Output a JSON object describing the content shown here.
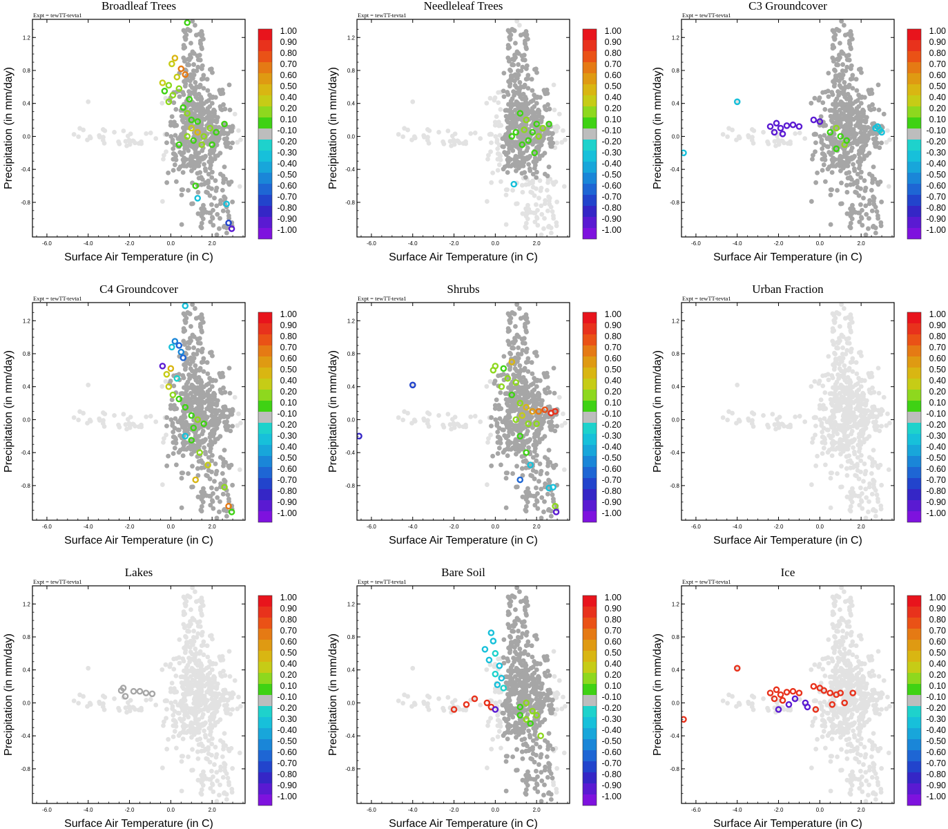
{
  "figure": {
    "expt_label": "Expt = tewTT-tevta1",
    "xlabel": "Surface Air Temperature (in C)",
    "ylabel": "Precipitation (in mm/day)",
    "x_ticks": [
      "-6.0",
      "-4.0",
      "-2.0",
      "0.0",
      "2.0"
    ],
    "y_ticks": [
      "1.2",
      "0.8",
      "0.4",
      "0.0",
      "-0.4",
      "-0.8"
    ],
    "colorbar_labels": [
      "1.00",
      "0.90",
      "0.80",
      "0.70",
      "0.60",
      "0.50",
      "0.40",
      "0.20",
      "0.10",
      "-0.10",
      "-0.20",
      "-0.30",
      "-0.40",
      "-0.50",
      "-0.60",
      "-0.70",
      "-0.80",
      "-0.90",
      "-1.00"
    ],
    "colorbar_colors": [
      "#e8141c",
      "#e8321c",
      "#ea5216",
      "#e57a14",
      "#df9a12",
      "#d9b612",
      "#c6cc16",
      "#8ed81e",
      "#3fd214",
      "#bdbdbd",
      "#1ed2cc",
      "#17c0da",
      "#18a6da",
      "#1a86d8",
      "#1e66d4",
      "#2244cc",
      "#3526c6",
      "#5a1ad2",
      "#7e12de"
    ],
    "background_color": "#e2e2e2",
    "highlight_gray": "#a6a6a6"
  },
  "chart_data": [
    {
      "title": "Broadleaf Trees",
      "type": "scatter",
      "xlim": [
        -6.7,
        3.6
      ],
      "ylim": [
        -1.22,
        1.42
      ],
      "xlabel": "Surface Air Temperature (in C)",
      "ylabel": "Precipitation (in mm/day)",
      "highlight_region": {
        "x": [
          -0.2,
          3.0
        ],
        "y": [
          -1.2,
          1.4
        ]
      },
      "colored": [
        [
          0.8,
          1.38,
          0.15
        ],
        [
          0.2,
          0.95,
          0.5
        ],
        [
          0.05,
          0.88,
          0.45
        ],
        [
          0.5,
          0.82,
          0.65
        ],
        [
          0.7,
          0.75,
          0.7
        ],
        [
          0.3,
          0.72,
          0.45
        ],
        [
          -0.4,
          0.65,
          0.4
        ],
        [
          -0.1,
          0.62,
          0.3
        ],
        [
          -0.3,
          0.55,
          0.15
        ],
        [
          0.1,
          0.5,
          0.2
        ],
        [
          0.4,
          0.58,
          0.35
        ],
        [
          -0.1,
          0.42,
          0.2
        ],
        [
          0.6,
          0.35,
          0.15
        ],
        [
          0.8,
          0.28,
          0.2
        ],
        [
          0.9,
          0.45,
          0.15
        ],
        [
          1.0,
          0.2,
          0.15
        ],
        [
          1.3,
          0.18,
          0.12
        ],
        [
          1.0,
          0.1,
          0.4
        ],
        [
          1.3,
          0.05,
          0.5
        ],
        [
          1.6,
          0.0,
          0.3
        ],
        [
          1.9,
          0.1,
          0.2
        ],
        [
          2.2,
          0.05,
          0.15
        ],
        [
          2.6,
          0.15,
          0.12
        ],
        [
          1.5,
          -0.1,
          0.25
        ],
        [
          1.1,
          -0.05,
          0.12
        ],
        [
          0.8,
          0.0,
          0.2
        ],
        [
          0.4,
          -0.1,
          0.15
        ],
        [
          2.0,
          -0.1,
          0.15
        ],
        [
          1.2,
          -0.6,
          0.15
        ],
        [
          1.3,
          -0.75,
          -0.25
        ],
        [
          2.7,
          -0.82,
          -0.3
        ],
        [
          2.8,
          -1.05,
          -0.7
        ],
        [
          2.95,
          -1.12,
          -0.85
        ]
      ]
    },
    {
      "title": "Needleleaf Trees",
      "type": "scatter",
      "xlim": [
        -6.7,
        3.6
      ],
      "ylim": [
        -1.22,
        1.42
      ],
      "xlabel": "Surface Air Temperature (in C)",
      "ylabel": "Precipitation (in mm/day)",
      "highlight_region": {
        "x": [
          0.3,
          2.8
        ],
        "y": [
          -0.5,
          1.3
        ]
      },
      "colored": [
        [
          1.2,
          0.28,
          0.15
        ],
        [
          1.5,
          0.2,
          0.2
        ],
        [
          2.0,
          0.15,
          0.12
        ],
        [
          2.3,
          0.1,
          0.2
        ],
        [
          2.6,
          0.15,
          0.12
        ],
        [
          1.8,
          0.05,
          0.15
        ],
        [
          1.4,
          0.08,
          0.3
        ],
        [
          1.0,
          0.05,
          0.15
        ],
        [
          0.8,
          0.0,
          0.12
        ],
        [
          1.6,
          -0.05,
          0.15
        ],
        [
          2.1,
          0.0,
          0.2
        ],
        [
          1.3,
          -0.1,
          0.12
        ],
        [
          1.9,
          -0.2,
          0.12
        ],
        [
          0.9,
          -0.58,
          -0.25
        ]
      ]
    },
    {
      "title": "C3 Groundcover",
      "type": "scatter",
      "xlim": [
        -6.7,
        3.6
      ],
      "ylim": [
        -1.22,
        1.42
      ],
      "xlabel": "Surface Air Temperature (in C)",
      "ylabel": "Precipitation (in mm/day)",
      "highlight_region": {
        "x": [
          -0.5,
          3.2
        ],
        "y": [
          -1.2,
          1.4
        ]
      },
      "colored": [
        [
          -4.0,
          0.42,
          -0.25
        ],
        [
          -6.6,
          -0.2,
          -0.3
        ],
        [
          -2.4,
          0.12,
          -0.95
        ],
        [
          -2.1,
          0.16,
          -0.9
        ],
        [
          -1.9,
          0.1,
          -0.95
        ],
        [
          -1.6,
          0.13,
          -0.9
        ],
        [
          -1.3,
          0.14,
          -0.9
        ],
        [
          -1.0,
          0.12,
          -0.95
        ],
        [
          -2.2,
          0.05,
          -0.9
        ],
        [
          -1.8,
          0.03,
          -0.95
        ],
        [
          -0.3,
          0.2,
          -0.9
        ],
        [
          0.0,
          0.18,
          -0.95
        ],
        [
          0.5,
          0.05,
          0.15
        ],
        [
          0.8,
          0.1,
          0.2
        ],
        [
          1.0,
          0.0,
          0.15
        ],
        [
          1.2,
          -0.1,
          0.2
        ],
        [
          0.8,
          -0.15,
          0.12
        ],
        [
          1.3,
          -0.05,
          0.15
        ],
        [
          2.7,
          0.1,
          -0.25
        ],
        [
          2.9,
          0.08,
          -0.2
        ],
        [
          3.0,
          0.05,
          -0.3
        ],
        [
          2.8,
          0.12,
          -0.25
        ]
      ]
    },
    {
      "title": "C4 Groundcover",
      "type": "scatter",
      "xlim": [
        -6.7,
        3.6
      ],
      "ylim": [
        -1.22,
        1.42
      ],
      "xlabel": "Surface Air Temperature (in C)",
      "ylabel": "Precipitation (in mm/day)",
      "highlight_region": {
        "x": [
          -0.2,
          3.0
        ],
        "y": [
          -1.2,
          1.4
        ]
      },
      "colored": [
        [
          0.7,
          1.38,
          -0.25
        ],
        [
          0.2,
          0.95,
          -0.45
        ],
        [
          0.4,
          0.9,
          -0.55
        ],
        [
          0.05,
          0.88,
          -0.3
        ],
        [
          0.5,
          0.82,
          -0.5
        ],
        [
          0.6,
          0.75,
          -0.6
        ],
        [
          -0.4,
          0.65,
          -0.85
        ],
        [
          0.0,
          0.62,
          0.5
        ],
        [
          -0.2,
          0.55,
          0.45
        ],
        [
          0.3,
          0.5,
          -0.2
        ],
        [
          -0.1,
          0.4,
          0.4
        ],
        [
          0.1,
          0.3,
          0.3
        ],
        [
          0.4,
          0.25,
          0.15
        ],
        [
          0.7,
          0.15,
          0.12
        ],
        [
          1.0,
          0.05,
          0.15
        ],
        [
          1.3,
          0.0,
          0.2
        ],
        [
          1.1,
          -0.1,
          0.12
        ],
        [
          1.6,
          -0.05,
          0.15
        ],
        [
          0.7,
          -0.2,
          -0.3
        ],
        [
          1.0,
          -0.25,
          0.15
        ],
        [
          1.4,
          -0.4,
          0.2
        ],
        [
          1.8,
          -0.55,
          0.4
        ],
        [
          1.2,
          -0.73,
          0.5
        ],
        [
          2.6,
          -0.82,
          0.2
        ],
        [
          2.8,
          -1.05,
          0.7
        ],
        [
          2.95,
          -1.12,
          0.12
        ]
      ]
    },
    {
      "title": "Shrubs",
      "type": "scatter",
      "xlim": [
        -6.7,
        3.6
      ],
      "ylim": [
        -1.22,
        1.42
      ],
      "xlabel": "Surface Air Temperature (in C)",
      "ylabel": "Precipitation (in mm/day)",
      "highlight_region": {
        "x": [
          -0.2,
          3.0
        ],
        "y": [
          -1.2,
          1.4
        ]
      },
      "colored": [
        [
          -4.0,
          0.42,
          -0.7
        ],
        [
          -6.6,
          -0.2,
          -0.75
        ],
        [
          0.0,
          0.65,
          0.3
        ],
        [
          -0.1,
          0.6,
          0.35
        ],
        [
          0.4,
          0.62,
          0.15
        ],
        [
          0.8,
          0.7,
          0.5
        ],
        [
          0.6,
          0.5,
          0.2
        ],
        [
          1.0,
          0.45,
          0.3
        ],
        [
          0.3,
          0.4,
          0.35
        ],
        [
          0.8,
          0.3,
          0.15
        ],
        [
          1.2,
          0.2,
          0.3
        ],
        [
          1.5,
          0.15,
          0.5
        ],
        [
          1.8,
          0.1,
          0.6
        ],
        [
          2.1,
          0.1,
          0.7
        ],
        [
          2.4,
          0.12,
          0.85
        ],
        [
          2.7,
          0.08,
          0.95
        ],
        [
          2.9,
          0.1,
          0.9
        ],
        [
          1.3,
          0.05,
          0.4
        ],
        [
          1.0,
          0.0,
          0.3
        ],
        [
          1.6,
          -0.05,
          0.2
        ],
        [
          2.0,
          -0.05,
          0.25
        ],
        [
          1.2,
          -0.2,
          0.15
        ],
        [
          1.5,
          -0.4,
          0.15
        ],
        [
          1.7,
          -0.55,
          -0.3
        ],
        [
          1.2,
          -0.73,
          -0.6
        ],
        [
          2.6,
          -0.83,
          -0.3
        ],
        [
          2.8,
          -0.82,
          -0.25
        ],
        [
          2.9,
          -1.05,
          0.3
        ],
        [
          2.95,
          -1.12,
          -0.9
        ]
      ]
    },
    {
      "title": "Urban Fraction",
      "type": "scatter",
      "xlim": [
        -6.7,
        3.6
      ],
      "ylim": [
        -1.22,
        1.42
      ],
      "xlabel": "Surface Air Temperature (in C)",
      "ylabel": "Precipitation (in mm/day)",
      "highlight_region": null,
      "colored": []
    },
    {
      "title": "Lakes",
      "type": "scatter",
      "xlim": [
        -6.7,
        3.6
      ],
      "ylim": [
        -1.22,
        1.42
      ],
      "xlabel": "Surface Air Temperature (in C)",
      "ylabel": "Precipitation (in mm/day)",
      "highlight_region": null,
      "colored": [
        [
          -2.4,
          0.15,
          -0.05
        ],
        [
          -2.3,
          0.18,
          -0.05
        ],
        [
          -1.8,
          0.14,
          -0.05
        ],
        [
          -1.5,
          0.14,
          -0.05
        ],
        [
          -1.2,
          0.12,
          -0.05
        ],
        [
          -0.9,
          0.11,
          -0.05
        ],
        [
          -2.2,
          0.08,
          -0.05
        ]
      ]
    },
    {
      "title": "Bare Soil",
      "type": "scatter",
      "xlim": [
        -6.7,
        3.6
      ],
      "ylim": [
        -1.22,
        1.42
      ],
      "xlabel": "Surface Air Temperature (in C)",
      "ylabel": "Precipitation (in mm/day)",
      "highlight_region": {
        "x": [
          0.3,
          2.8
        ],
        "y": [
          -1.2,
          1.4
        ]
      },
      "colored": [
        [
          -0.2,
          0.85,
          -0.25
        ],
        [
          -0.1,
          0.75,
          -0.3
        ],
        [
          -0.5,
          0.65,
          -0.25
        ],
        [
          0.0,
          0.6,
          -0.2
        ],
        [
          -0.3,
          0.52,
          -0.3
        ],
        [
          0.2,
          0.45,
          -0.25
        ],
        [
          0.0,
          0.35,
          -0.2
        ],
        [
          0.3,
          0.3,
          -0.3
        ],
        [
          0.1,
          0.22,
          -0.25
        ],
        [
          0.4,
          0.18,
          -0.2
        ],
        [
          -2.0,
          -0.08,
          0.95
        ],
        [
          -1.4,
          -0.02,
          0.95
        ],
        [
          -1.0,
          0.05,
          0.95
        ],
        [
          -0.4,
          0.0,
          0.95
        ],
        [
          -0.2,
          -0.05,
          0.95
        ],
        [
          0.0,
          -0.08,
          -0.9
        ],
        [
          1.2,
          -0.05,
          0.15
        ],
        [
          1.5,
          0.0,
          0.2
        ],
        [
          1.8,
          -0.1,
          0.3
        ],
        [
          1.2,
          -0.15,
          0.15
        ],
        [
          1.5,
          -0.2,
          0.2
        ],
        [
          2.0,
          -0.15,
          0.35
        ],
        [
          1.7,
          -0.25,
          0.15
        ],
        [
          2.2,
          -0.4,
          0.35
        ]
      ]
    },
    {
      "title": "Ice",
      "type": "scatter",
      "xlim": [
        -6.7,
        3.6
      ],
      "ylim": [
        -1.22,
        1.42
      ],
      "xlabel": "Surface Air Temperature (in C)",
      "ylabel": "Precipitation (in mm/day)",
      "highlight_region": null,
      "colored": [
        [
          -4.0,
          0.42,
          0.95
        ],
        [
          -6.6,
          -0.2,
          0.95
        ],
        [
          -2.4,
          0.12,
          0.95
        ],
        [
          -2.1,
          0.16,
          0.95
        ],
        [
          -1.9,
          0.1,
          0.95
        ],
        [
          -1.6,
          0.13,
          0.95
        ],
        [
          -1.3,
          0.14,
          0.95
        ],
        [
          -1.0,
          0.12,
          0.95
        ],
        [
          -2.2,
          0.05,
          0.95
        ],
        [
          -1.8,
          0.03,
          0.95
        ],
        [
          -0.3,
          0.2,
          0.95
        ],
        [
          0.0,
          0.18,
          0.95
        ],
        [
          0.2,
          0.15,
          0.95
        ],
        [
          0.5,
          0.12,
          0.95
        ],
        [
          0.8,
          0.1,
          0.95
        ],
        [
          1.0,
          0.12,
          0.95
        ],
        [
          1.6,
          0.12,
          0.95
        ],
        [
          1.2,
          0.0,
          0.95
        ],
        [
          0.6,
          -0.02,
          0.95
        ],
        [
          -2.0,
          -0.08,
          -0.9
        ],
        [
          -1.5,
          -0.02,
          -0.9
        ],
        [
          -0.7,
          0.0,
          -0.9
        ],
        [
          -0.6,
          -0.05,
          -0.9
        ],
        [
          -0.2,
          -0.08,
          0.95
        ],
        [
          -1.2,
          0.05,
          -0.95
        ]
      ]
    }
  ]
}
